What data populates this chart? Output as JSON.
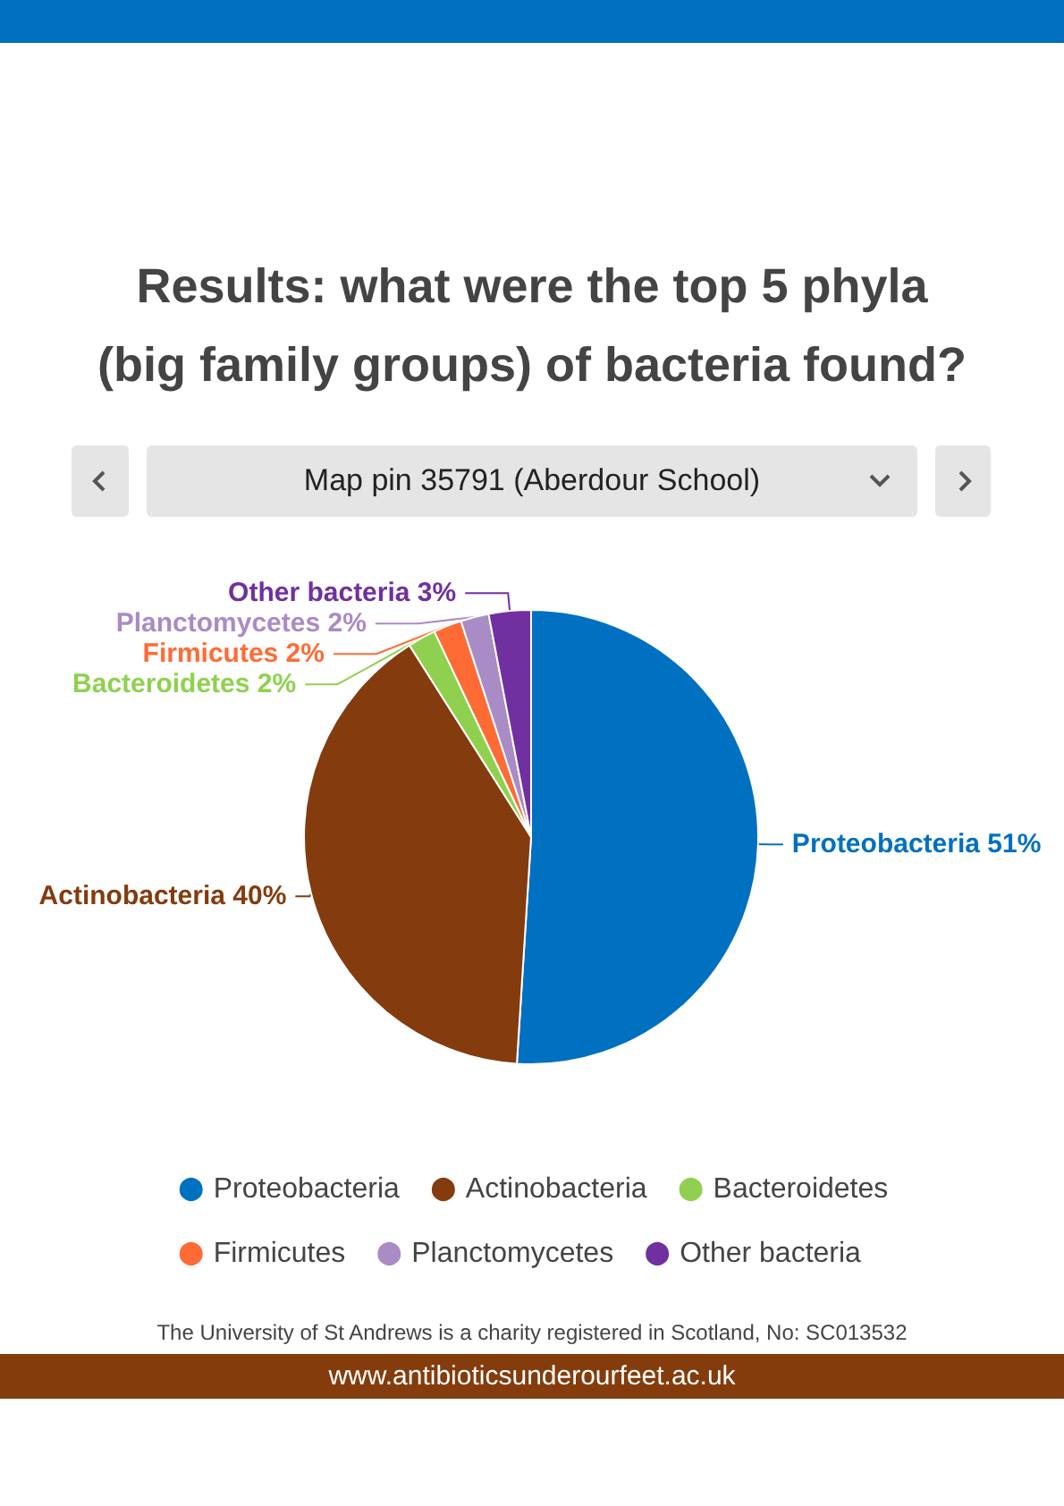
{
  "chart_data": {
    "type": "pie",
    "title": "Results: what were the top 5 phyla (big family groups) of bacteria found?",
    "subtitle": "Map pin 35791 (Aberdour School)",
    "categories": [
      "Proteobacteria",
      "Actinobacteria",
      "Bacteroidetes",
      "Firmicutes",
      "Planctomycetes",
      "Other bacteria"
    ],
    "values": [
      51,
      40,
      2,
      2,
      2,
      3
    ],
    "value_labels": [
      "51%",
      "40%",
      "2%",
      "2%",
      "2%",
      "3%"
    ],
    "colors": [
      "#0070c0",
      "#843b0e",
      "#8fd14f",
      "#ff6b35",
      "#a98bc6",
      "#7030a0"
    ],
    "legend": "bottom",
    "annotations": [
      "The University of St Andrews is a charity registered in Scotland, No: SC013532",
      "www.antibioticsunderourfeet.ac.uk"
    ]
  }
}
